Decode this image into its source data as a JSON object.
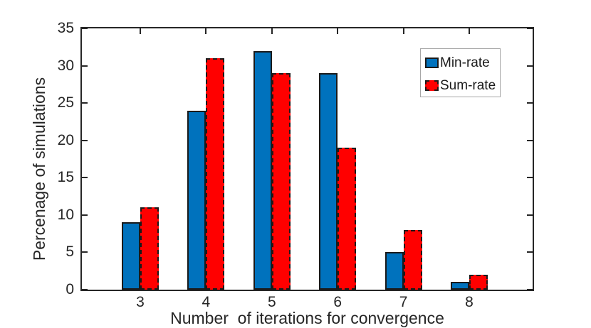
{
  "chart_data": {
    "type": "bar",
    "title": "",
    "xlabel": "Number  of iterations for convergence",
    "ylabel": "Percenage of simulations",
    "categories": [
      "3",
      "4",
      "5",
      "6",
      "7",
      "8"
    ],
    "yticks": [
      0,
      5,
      10,
      15,
      20,
      25,
      30,
      35
    ],
    "ylim": [
      0,
      35
    ],
    "grid": false,
    "legend_position": "upper-right",
    "series": [
      {
        "name": "Min-rate",
        "color": "#0072BD",
        "edge": "solid",
        "values": [
          9,
          24,
          32,
          29,
          5,
          1
        ]
      },
      {
        "name": "Sum-rate",
        "color": "#FF0000",
        "edge": "dashed",
        "values": [
          11,
          31,
          29,
          19,
          8,
          2
        ]
      }
    ],
    "colors": {
      "axis": "#262626",
      "bar_edge": "#1a1a1a",
      "legend_border": "#a6a6a6",
      "text": "#262626",
      "background": "#ffffff"
    }
  }
}
